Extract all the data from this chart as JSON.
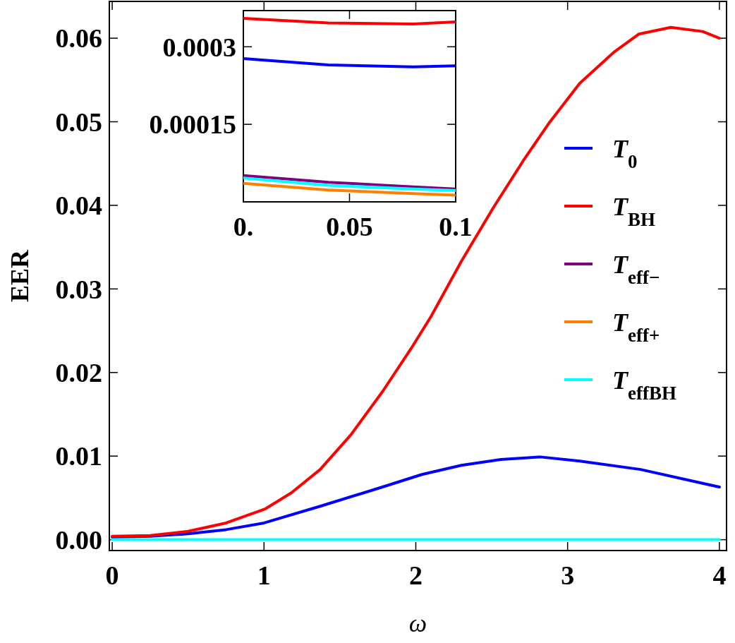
{
  "chart_data": [
    {
      "type": "line",
      "xlabel": "ω",
      "ylabel": "EER",
      "xlim": [
        -0.019,
        4.047
      ],
      "ylim": [
        -0.0013,
        0.0644
      ],
      "xticks": [
        0,
        1,
        2,
        3,
        4
      ],
      "yticks": [
        {
          "value": 0,
          "label": "0.00"
        },
        {
          "value": 0.01,
          "label": "0.01"
        },
        {
          "value": 0.02,
          "label": "0.02"
        },
        {
          "value": 0.03,
          "label": "0.03"
        },
        {
          "value": 0.04,
          "label": "0.04"
        },
        {
          "value": 0.05,
          "label": "0.05"
        },
        {
          "value": 0.06,
          "label": "0.06"
        }
      ],
      "grid": false,
      "legend": "right",
      "line_style": "solid",
      "marker": "none",
      "series": [
        {
          "name": "T$_{0}$",
          "color": "#0000ff",
          "x": [
            0,
            0.25,
            0.5,
            0.75,
            1.0,
            1.37,
            1.78,
            2.04,
            2.3,
            2.56,
            2.82,
            3.08,
            3.48,
            4.0
          ],
          "values": [
            0.0003,
            0.0004,
            0.0007,
            0.0012,
            0.002,
            0.004,
            0.0063,
            0.0078,
            0.0089,
            0.0096,
            0.0099,
            0.0094,
            0.0084,
            0.0063
          ]
        },
        {
          "name": "T$_{BH}$",
          "color": "#ff0000",
          "x": [
            0,
            0.25,
            0.5,
            0.75,
            1.01,
            1.18,
            1.37,
            1.57,
            1.78,
            1.97,
            2.1,
            2.3,
            2.51,
            2.71,
            2.88,
            3.08,
            3.31,
            3.47,
            3.68,
            3.89,
            4.0
          ],
          "values": [
            0.0004,
            0.0005,
            0.001,
            0.002,
            0.0037,
            0.0056,
            0.0084,
            0.0125,
            0.0177,
            0.0229,
            0.0267,
            0.0333,
            0.0397,
            0.0454,
            0.0499,
            0.0546,
            0.0584,
            0.0605,
            0.0613,
            0.0608,
            0.06
          ]
        },
        {
          "name": "T$_{eff−}$",
          "color": "#800080"
        },
        {
          "name": "T$_{eff+}$",
          "color": "#ff8000"
        },
        {
          "name": "T$_{effBH}$",
          "color": "#00ffff",
          "x": [
            0,
            1,
            2,
            3,
            4
          ],
          "values": [
            0,
            0,
            0,
            0,
            0
          ]
        }
      ]
    },
    {
      "type": "line",
      "xlim": [
        0,
        0.1
      ],
      "ylim": [
        0,
        0.00037
      ],
      "xticks": [
        {
          "value": 0,
          "label": "0."
        },
        0.05,
        0.1
      ],
      "yticks": [
        0.00015,
        0.0003
      ],
      "grid": false,
      "line_style": "solid",
      "marker": "none",
      "series": [
        {
          "color": "#ff0000",
          "x": [
            0,
            0.04,
            0.08,
            0.1
          ],
          "values": [
            0.000355,
            0.000346,
            0.000344,
            0.000348
          ]
        },
        {
          "color": "#0000ff",
          "x": [
            0,
            0.04,
            0.08,
            0.1
          ],
          "values": [
            0.000277,
            0.000265,
            0.000261,
            0.000263
          ]
        },
        {
          "color": "#800080",
          "x": [
            0,
            0.04,
            0.08,
            0.1
          ],
          "values": [
            5.1e-05,
            3.8e-05,
            2.9e-05,
            2.5e-05
          ]
        },
        {
          "color": "#00ffff",
          "x": [
            0,
            0.04,
            0.08,
            0.1
          ],
          "values": [
            4.6e-05,
            3.2e-05,
            2.5e-05,
            2.2e-05
          ]
        },
        {
          "color": "#ff8000",
          "x": [
            0,
            0.04,
            0.08,
            0.1
          ],
          "values": [
            3.6e-05,
            2.3e-05,
            1.6e-05,
            1.3e-05
          ]
        }
      ]
    }
  ]
}
